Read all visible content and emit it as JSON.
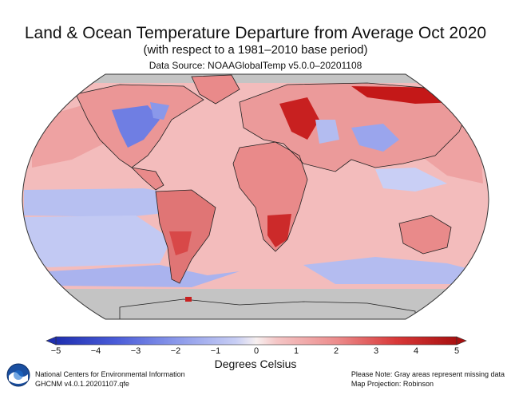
{
  "title": "Land & Ocean Temperature Departure from Average Oct 2020",
  "subtitle": "(with respect to a 1981–2010 base period)",
  "source": "Data Source: NOAAGlobalTemp v5.0.0–20201108",
  "colorbar": {
    "label": "Degrees Celsius",
    "ticks": [
      "−5",
      "−4",
      "−3",
      "−2",
      "−1",
      "0",
      "1",
      "2",
      "3",
      "4",
      "5"
    ],
    "range": [
      -5,
      5
    ],
    "colors": [
      "#1f2fb0",
      "#3a4fd0",
      "#5a6ee0",
      "#8a98ea",
      "#bcc4f2",
      "#f4c6c6",
      "#f29a9a",
      "#e86666",
      "#d83838",
      "#b81818"
    ]
  },
  "footer": {
    "org_line1": "National Centers for Environmental Information",
    "org_line2": "GHCNM v4.0.1.20201107.qfe",
    "note_line1": "Please Note: Gray areas represent missing data",
    "note_line2": "Map Projection: Robinson"
  },
  "logo_text": "NOAA",
  "colors": {
    "missing": "#c4c4c4",
    "ocean_warm": "#f3b8b8",
    "land_warm": "#e98a8a",
    "cool": "#a8b2ee",
    "hot": "#c81e1e"
  }
}
